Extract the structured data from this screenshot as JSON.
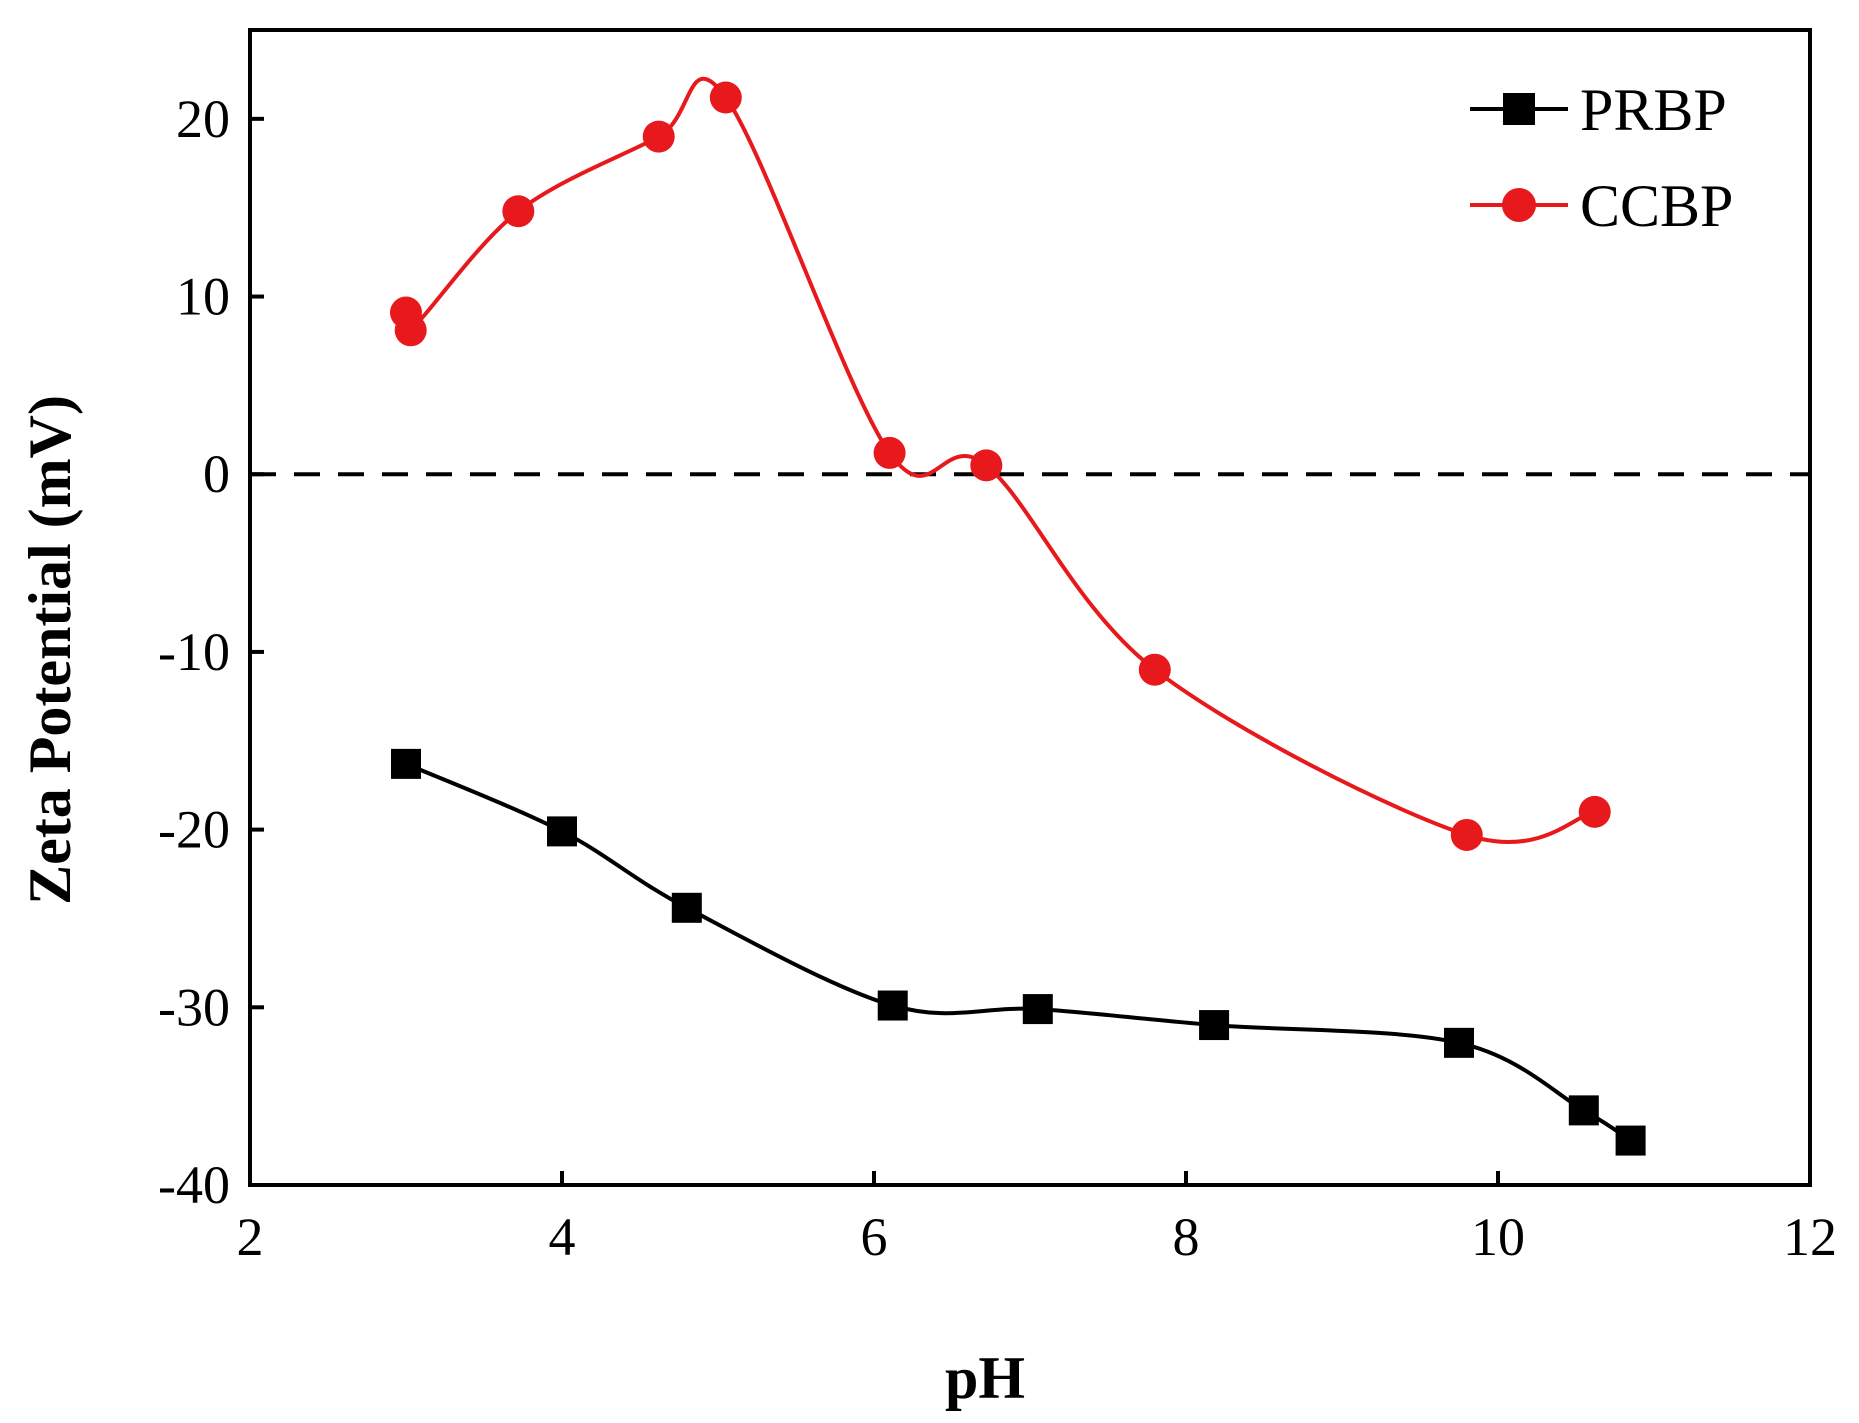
{
  "chart_data": {
    "type": "line",
    "title": "",
    "xlabel": "pH",
    "ylabel": "Zeta Potential (mV)",
    "xlim": [
      2,
      12
    ],
    "ylim": [
      -40,
      25
    ],
    "xticks": [
      2,
      4,
      6,
      8,
      10,
      12
    ],
    "yticks": [
      -40,
      -30,
      -20,
      -10,
      0,
      10,
      20
    ],
    "xtick_labels": [
      "2",
      "4",
      "6",
      "8",
      "10",
      "12"
    ],
    "ytick_labels": [
      "-40",
      "-30",
      "-20",
      "-10",
      "0",
      "10",
      "20"
    ],
    "reference_line": {
      "y": 0,
      "style": "dashed",
      "color": "#000000"
    },
    "grid": false,
    "legend_position": "top-right",
    "series": [
      {
        "name": "PRBP",
        "marker": "square",
        "color": "#000000",
        "x": [
          3.0,
          4.0,
          4.8,
          6.12,
          7.05,
          8.18,
          9.75,
          10.55,
          10.85
        ],
        "y": [
          -16.3,
          -20.1,
          -24.4,
          -29.9,
          -30.1,
          -31.0,
          -32.0,
          -35.8,
          -37.5
        ]
      },
      {
        "name": "CCBP",
        "marker": "circle",
        "color": "#e8191c",
        "x": [
          3.0,
          3.03,
          3.72,
          4.62,
          5.05,
          6.1,
          6.72,
          7.8,
          9.8,
          10.62
        ],
        "y": [
          9.1,
          8.1,
          14.8,
          19.0,
          21.2,
          1.2,
          0.5,
          -11.0,
          -20.3,
          -19.0
        ]
      }
    ]
  }
}
